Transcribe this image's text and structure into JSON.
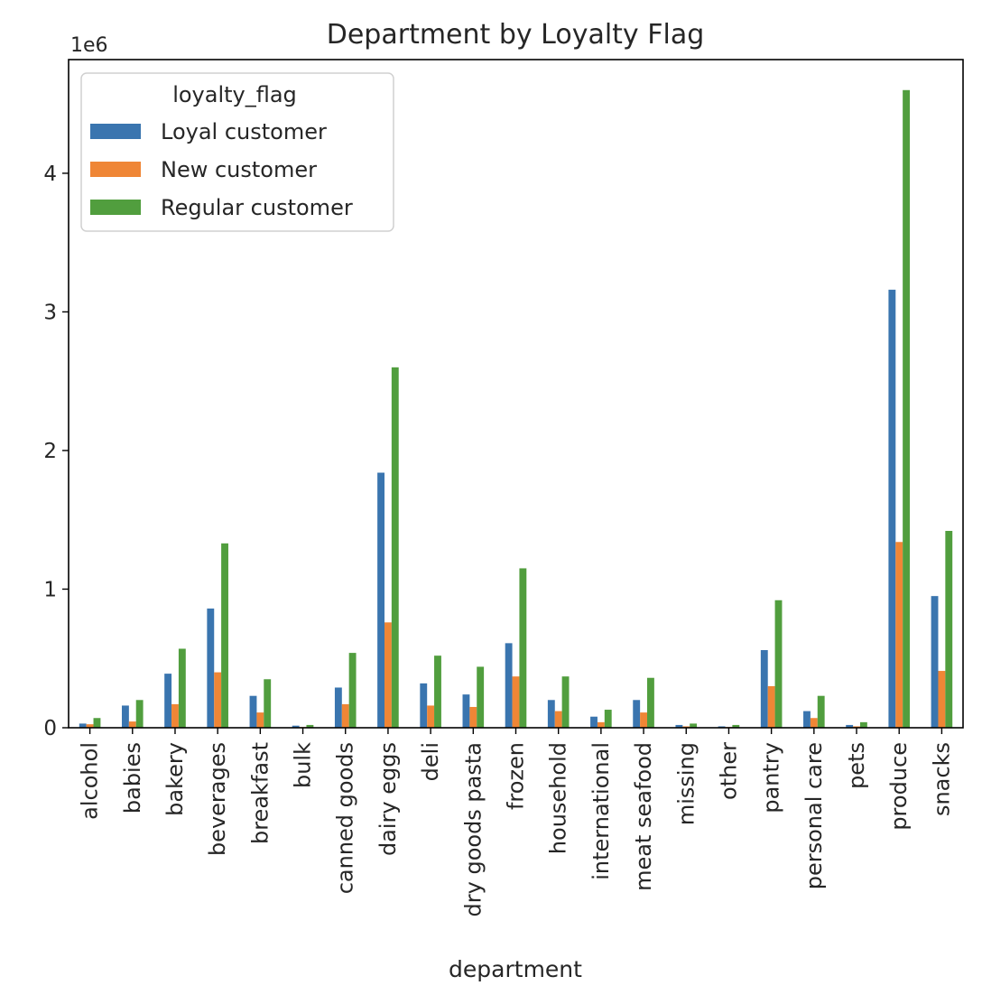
{
  "chart_data": {
    "type": "bar",
    "title": "Department by Loyalty Flag",
    "xlabel": "department",
    "ylabel": "",
    "offset_label": "1e6",
    "ylim": [
      0,
      4.82
    ],
    "yticks": [
      0,
      1,
      2,
      3,
      4
    ],
    "grid": false,
    "legend": {
      "title": "loyalty_flag",
      "placement": "upper left"
    },
    "categories": [
      "alcohol",
      "babies",
      "bakery",
      "beverages",
      "breakfast",
      "bulk",
      "canned goods",
      "dairy eggs",
      "deli",
      "dry goods pasta",
      "frozen",
      "household",
      "international",
      "meat seafood",
      "missing",
      "other",
      "pantry",
      "personal care",
      "pets",
      "produce",
      "snacks"
    ],
    "series": [
      {
        "name": "Loyal customer",
        "color": "#3a75af",
        "values": [
          0.03,
          0.16,
          0.39,
          0.86,
          0.23,
          0.015,
          0.29,
          1.84,
          0.32,
          0.24,
          0.61,
          0.2,
          0.08,
          0.2,
          0.02,
          0.01,
          0.56,
          0.12,
          0.02,
          3.16,
          0.95
        ]
      },
      {
        "name": "New customer",
        "color": "#ef8636",
        "values": [
          0.025,
          0.045,
          0.17,
          0.4,
          0.11,
          0.005,
          0.17,
          0.76,
          0.16,
          0.15,
          0.37,
          0.12,
          0.04,
          0.11,
          0.01,
          0.005,
          0.3,
          0.07,
          0.01,
          1.34,
          0.41
        ]
      },
      {
        "name": "Regular customer",
        "color": "#519e3e",
        "values": [
          0.07,
          0.2,
          0.57,
          1.33,
          0.35,
          0.02,
          0.54,
          2.6,
          0.52,
          0.44,
          1.15,
          0.37,
          0.13,
          0.36,
          0.03,
          0.02,
          0.92,
          0.23,
          0.04,
          4.6,
          1.42
        ]
      }
    ]
  }
}
